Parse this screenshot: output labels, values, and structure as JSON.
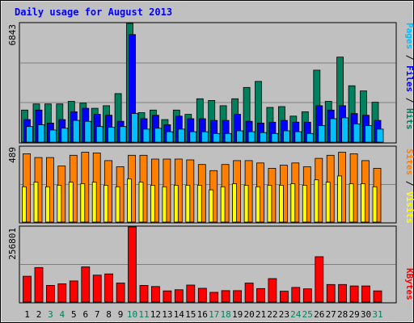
{
  "title": "Daily usage for August 2013",
  "colors": {
    "hits": "#00805c",
    "files": "#0000ff",
    "pages": "#00c0ff",
    "visits": "#ff8000",
    "sites": "#ffff00",
    "kbytes": "#ff0000",
    "background": "#c0c0c0",
    "gridline": "#808080",
    "weekday_label": "#000000",
    "weekend_label": "#00805c"
  },
  "chart_data": [
    {
      "type": "bar",
      "title": "Daily usage for August 2013",
      "categories": [
        "1",
        "2",
        "3",
        "4",
        "5",
        "6",
        "7",
        "8",
        "9",
        "10",
        "11",
        "12",
        "13",
        "14",
        "15",
        "16",
        "17",
        "18",
        "19",
        "20",
        "21",
        "22",
        "23",
        "24",
        "25",
        "26",
        "27",
        "28",
        "29",
        "30",
        "31"
      ],
      "weekend_days": [
        "3",
        "4",
        "10",
        "11",
        "17",
        "18",
        "24",
        "25",
        "31"
      ],
      "ymax_label": "6843",
      "ylim": [
        0,
        6843
      ],
      "axis_labels": [
        {
          "text": "Pages",
          "color": "#00c0ff"
        },
        {
          "text": "/",
          "color": "#000000"
        },
        {
          "text": "Files",
          "color": "#0000ff"
        },
        {
          "text": "/",
          "color": "#000000"
        },
        {
          "text": "Hits",
          "color": "#00805c"
        }
      ],
      "series": [
        {
          "key": "hits",
          "values": [
            1850,
            2200,
            2200,
            2200,
            2350,
            2250,
            1950,
            2100,
            2800,
            6843,
            1700,
            1850,
            1300,
            1850,
            1600,
            2500,
            2400,
            2100,
            2500,
            3150,
            3500,
            2000,
            2050,
            1500,
            1750,
            4150,
            2350,
            4900,
            3250,
            2950,
            2300
          ]
        },
        {
          "key": "files",
          "values": [
            1300,
            1850,
            1100,
            1300,
            1750,
            1950,
            1600,
            1550,
            1200,
            6200,
            1350,
            1550,
            1000,
            1500,
            1350,
            1350,
            1250,
            1250,
            1600,
            1200,
            1100,
            1150,
            1250,
            1150,
            1150,
            2100,
            1850,
            2100,
            1650,
            1550,
            1250
          ]
        },
        {
          "key": "pages",
          "values": [
            900,
            1000,
            700,
            800,
            1250,
            1200,
            900,
            850,
            900,
            1650,
            750,
            800,
            600,
            750,
            600,
            600,
            500,
            500,
            650,
            600,
            550,
            500,
            650,
            600,
            500,
            950,
            1350,
            1400,
            1050,
            950,
            750
          ]
        }
      ]
    },
    {
      "type": "bar",
      "categories": [
        "1",
        "2",
        "3",
        "4",
        "5",
        "6",
        "7",
        "8",
        "9",
        "10",
        "11",
        "12",
        "13",
        "14",
        "15",
        "16",
        "17",
        "18",
        "19",
        "20",
        "21",
        "22",
        "23",
        "24",
        "25",
        "26",
        "27",
        "28",
        "29",
        "30",
        "31"
      ],
      "ymax_label": "489",
      "ylim": [
        0,
        489
      ],
      "axis_labels": [
        {
          "text": "Sites",
          "color": "#ff8000"
        },
        {
          "text": "/",
          "color": "#000000"
        },
        {
          "text": "Visits",
          "color": "#ffff00"
        }
      ],
      "series": [
        {
          "key": "visits",
          "values": [
            445,
            420,
            420,
            365,
            435,
            455,
            450,
            400,
            360,
            435,
            435,
            410,
            410,
            410,
            405,
            375,
            335,
            375,
            400,
            400,
            385,
            350,
            370,
            385,
            360,
            415,
            435,
            455,
            445,
            400,
            350
          ]
        },
        {
          "key": "sites",
          "values": [
            230,
            260,
            230,
            240,
            260,
            250,
            260,
            240,
            230,
            280,
            260,
            240,
            230,
            240,
            240,
            240,
            210,
            230,
            250,
            240,
            230,
            240,
            240,
            250,
            240,
            275,
            260,
            300,
            250,
            250,
            230
          ]
        }
      ]
    },
    {
      "type": "bar",
      "categories": [
        "1",
        "2",
        "3",
        "4",
        "5",
        "6",
        "7",
        "8",
        "9",
        "10",
        "11",
        "12",
        "13",
        "14",
        "15",
        "16",
        "17",
        "18",
        "19",
        "20",
        "21",
        "22",
        "23",
        "24",
        "25",
        "26",
        "27",
        "28",
        "29",
        "30",
        "31"
      ],
      "ymax_label": "256801",
      "ylim": [
        0,
        256801
      ],
      "axis_labels": [
        {
          "text": "KBytes",
          "color": "#ff0000"
        }
      ],
      "series": [
        {
          "key": "kbytes",
          "values": [
            88000,
            118000,
            57000,
            62000,
            72000,
            120000,
            92000,
            96000,
            65000,
            256801,
            57000,
            53000,
            38000,
            42000,
            58000,
            47000,
            33000,
            39000,
            39000,
            65000,
            46000,
            80000,
            37000,
            50000,
            45000,
            155000,
            60000,
            60000,
            55000,
            55000,
            38000
          ]
        }
      ]
    }
  ]
}
